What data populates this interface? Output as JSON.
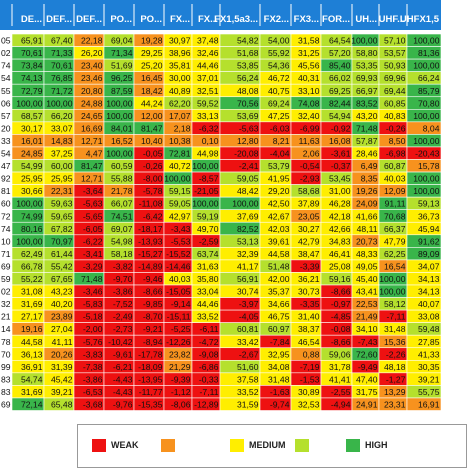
{
  "chart_data": {
    "type": "heatmap",
    "title": "",
    "columns": [
      "DE...",
      "DEF...",
      "DEF...",
      "PO...",
      "PO...",
      "FX...",
      "FX...",
      "FX1,5a3...",
      "FX2...",
      "FX3...",
      "FOR...",
      "UH...",
      "UHF...",
      "UHFX1,5"
    ],
    "rows": [
      [
        "05",
        "65,91",
        "67,40",
        "22,18",
        "69,04",
        "19,28",
        "30,97",
        "37,48",
        "54,82",
        "54,00",
        "31,58",
        "64,54",
        "100,00",
        "57,10",
        "100,00"
      ],
      [
        "02",
        "70,61",
        "71,33",
        "26,20",
        "71,34",
        "29,25",
        "38,96",
        "32,46",
        "51,68",
        "55,92",
        "31,25",
        "57,20",
        "58,80",
        "53,57",
        "81,36"
      ],
      [
        "74",
        "73,84",
        "70,61",
        "23,40",
        "51,69",
        "25,20",
        "35,81",
        "44,46",
        "53,85",
        "54,36",
        "45,56",
        "85,40",
        "53,35",
        "50,93",
        "100,00"
      ],
      [
        "54",
        "74,13",
        "76,85",
        "23,46",
        "96,25",
        "16,45",
        "30,00",
        "37,01",
        "56,24",
        "46,72",
        "40,31",
        "66,02",
        "69,93",
        "69,96",
        "66,24"
      ],
      [
        "55",
        "72,79",
        "71,72",
        "20,80",
        "87,59",
        "18,42",
        "40,89",
        "32,51",
        "48,08",
        "40,75",
        "33,10",
        "69,25",
        "66,97",
        "69,44",
        "85,79"
      ],
      [
        "06",
        "100,00",
        "100,00",
        "24,88",
        "100,00",
        "44,24",
        "62,20",
        "59,52",
        "70,56",
        "69,24",
        "74,08",
        "82,44",
        "83,52",
        "60,85",
        "70,80"
      ],
      [
        "57",
        "68,57",
        "66,20",
        "24,65",
        "100,00",
        "12,00",
        "17,07",
        "33,13",
        "53,69",
        "47,25",
        "32,40",
        "54,94",
        "43,20",
        "40,83",
        "100,00"
      ],
      [
        "20",
        "30,17",
        "33,07",
        "16,69",
        "84,01",
        "81,47",
        "2,18",
        "-6,32",
        "-5,63",
        "-6,03",
        "-6,99",
        "-0,92",
        "71,48",
        "-0,26",
        "8,04"
      ],
      [
        "33",
        "16,01",
        "14,83",
        "12,71",
        "16,52",
        "10,40",
        "10,38",
        "0,10",
        "12,80",
        "8,21",
        "11,63",
        "16,08",
        "57,87",
        "8,50",
        "100,00"
      ],
      [
        "54",
        "24,85",
        "37,25",
        "4,47",
        "100,00",
        "-0,05",
        "72,81",
        "44,98",
        "-20,08",
        "-4,04",
        "2,06",
        "-3,61",
        "28,46",
        "-6,98",
        "-20,43"
      ],
      [
        "47",
        "54,99",
        "60,00",
        "81,47",
        "60,59",
        "-0,26",
        "40,72",
        "100,00",
        "-2,41",
        "53,79",
        "-0,54",
        "-0,37",
        "6,49",
        "60,87",
        "15,78"
      ],
      [
        "92",
        "25,95",
        "25,95",
        "12,71",
        "55,88",
        "-8,00",
        "100,00",
        "-8,57",
        "59,05",
        "41,95",
        "-2,93",
        "53,45",
        "8,35",
        "40,03",
        "100,00"
      ],
      [
        "81",
        "30,66",
        "22,31",
        "-3,64",
        "21,78",
        "-5,78",
        "59,15",
        "-21,05",
        "48,42",
        "29,20",
        "58,68",
        "31,00",
        "19,26",
        "12,09",
        "100,00"
      ],
      [
        "60",
        "100,00",
        "59,63",
        "-5,63",
        "66,07",
        "-11,08",
        "59,05",
        "100,00",
        "100,00",
        "42,50",
        "37,89",
        "46,28",
        "24,09",
        "91,11",
        "59,13"
      ],
      [
        "72",
        "74,99",
        "59,65",
        "-5,65",
        "74,51",
        "-6,42",
        "42,97",
        "59,19",
        "37,69",
        "42,67",
        "23,05",
        "42,18",
        "41,66",
        "70,68",
        "36,73"
      ],
      [
        "74",
        "80,16",
        "67,82",
        "-6,05",
        "69,07",
        "-18,17",
        "-3,43",
        "49,70",
        "82,52",
        "42,03",
        "30,27",
        "42,66",
        "48,11",
        "66,37",
        "45,94"
      ],
      [
        "10",
        "100,00",
        "70,97",
        "-6,22",
        "54,98",
        "-13,93",
        "-5,53",
        "-2,59",
        "53,13",
        "39,61",
        "42,79",
        "34,83",
        "20,73",
        "47,79",
        "91,62"
      ],
      [
        "71",
        "62,49",
        "61,44",
        "-3,41",
        "58,18",
        "-15,27",
        "-15,52",
        "63,74",
        "32,39",
        "44,58",
        "38,47",
        "46,41",
        "48,33",
        "62,25",
        "89,09"
      ],
      [
        "69",
        "66,78",
        "55,42",
        "-3,29",
        "-3,82",
        "-14,89",
        "-14,46",
        "31,63",
        "41,17",
        "51,48",
        "-3,39",
        "25,08",
        "49,05",
        "16,54",
        "34,07"
      ],
      [
        "59",
        "55,22",
        "67,65",
        "71,48",
        "-9,70",
        "-9,46",
        "40,03",
        "35,80",
        "56,91",
        "42,00",
        "36,21",
        "59,16",
        "45,40",
        "100,00",
        "34,13"
      ],
      [
        "02",
        "31,08",
        "43,23",
        "-3,46",
        "-3,86",
        "-8,66",
        "-15,05",
        "33,04",
        "30,74",
        "35,37",
        "30,73",
        "-8,66",
        "43,41",
        "100,00",
        "34,13"
      ],
      [
        "32",
        "31,69",
        "40,20",
        "-5,83",
        "-7,52",
        "-9,85",
        "-9,14",
        "44,46",
        "-3,97",
        "34,66",
        "-3,35",
        "-0,97",
        "22,53",
        "58,12",
        "40,07"
      ],
      [
        "21",
        "27,17",
        "23,89",
        "-5,18",
        "-2,49",
        "-8,70",
        "-15,11",
        "33,52",
        "-4,05",
        "46,75",
        "31,40",
        "-4,85",
        "21,49",
        "-7,11",
        "33,08"
      ],
      [
        "14",
        "19,16",
        "27,04",
        "-2,00",
        "-2,73",
        "-9,21",
        "-5,25",
        "-6,11",
        "60,81",
        "60,97",
        "38,37",
        "-0,08",
        "34,10",
        "31,48",
        "59,48"
      ],
      [
        "78",
        "44,58",
        "41,11",
        "-5,76",
        "-10,42",
        "-8,94",
        "-12,26",
        "-4,72",
        "33,42",
        "-7,84",
        "46,54",
        "-8,66",
        "-7,43",
        "15,36",
        "27,85"
      ],
      [
        "70",
        "36,13",
        "20,26",
        "-3,83",
        "-9,61",
        "-17,78",
        "23,82",
        "-9,08",
        "-2,67",
        "32,95",
        "0,88",
        "59,06",
        "72,60",
        "-2,26",
        "41,33"
      ],
      [
        "99",
        "36,91",
        "31,39",
        "-7,38",
        "-6,21",
        "-18,09",
        "21,29",
        "-6,86",
        "51,60",
        "34,08",
        "-7,19",
        "31,78",
        "-9,49",
        "48,18",
        "30,35"
      ],
      [
        "83",
        "54,74",
        "45,42",
        "-3,86",
        "-4,43",
        "-13,95",
        "-9,39",
        "-0,33",
        "37,58",
        "31,48",
        "-1,53",
        "41,41",
        "47,40",
        "-1,27",
        "39,21"
      ],
      [
        "83",
        "31,69",
        "39,21",
        "-6,53",
        "-4,43",
        "-11,77",
        "-1,12",
        "-7,11",
        "33,52",
        "-1,63",
        "30,89",
        "-2,55",
        "31,75",
        "13,29",
        "55,75"
      ],
      [
        "69",
        "72,14",
        "65,48",
        "-3,68",
        "-9,76",
        "-15,35",
        "-8,06",
        "-12,89",
        "31,59",
        "-9,74",
        "32,53",
        "-4,94",
        "24,91",
        "23,31",
        "16,91"
      ]
    ],
    "levels": [
      {
        "label": "WEAK",
        "color": "#ee1111"
      },
      {
        "label": "",
        "color": "#f7921e"
      },
      {
        "label": "MEDIUM",
        "color": "#ffee00"
      },
      {
        "label": "",
        "color": "#b5e02d"
      },
      {
        "label": "HIGH",
        "color": "#39b54a"
      }
    ],
    "legend_position": "bottom"
  }
}
